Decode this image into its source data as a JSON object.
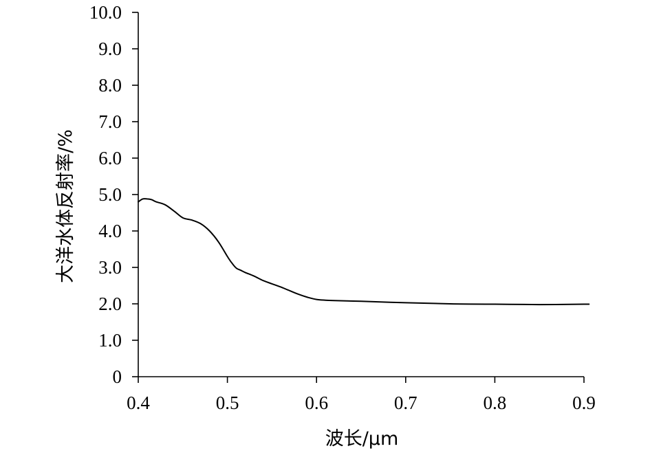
{
  "chart_data": {
    "type": "line",
    "xlabel": "波长/μm",
    "ylabel": "大洋水体反射率/%",
    "xlim": [
      0.4,
      0.9
    ],
    "ylim": [
      0,
      10
    ],
    "x_ticks": [
      "0.4",
      "0.5",
      "0.6",
      "0.7",
      "0.8",
      "0.9"
    ],
    "y_ticks": [
      "0",
      "1.0",
      "2.0",
      "3.0",
      "4.0",
      "5.0",
      "6.0",
      "7.0",
      "8.0",
      "9.0",
      "10.0"
    ],
    "grid": false,
    "legend": "none",
    "series": [
      {
        "x": [
          0.4,
          0.405,
          0.41,
          0.415,
          0.42,
          0.43,
          0.44,
          0.45,
          0.46,
          0.47,
          0.48,
          0.49,
          0.5,
          0.505,
          0.51,
          0.515,
          0.52,
          0.53,
          0.54,
          0.55,
          0.56,
          0.57,
          0.58,
          0.59,
          0.6,
          0.61,
          0.62,
          0.65,
          0.7,
          0.75,
          0.8,
          0.85,
          0.9,
          0.905
        ],
        "y": [
          4.8,
          4.88,
          4.88,
          4.86,
          4.8,
          4.72,
          4.55,
          4.36,
          4.3,
          4.2,
          4.0,
          3.7,
          3.3,
          3.12,
          2.98,
          2.92,
          2.86,
          2.76,
          2.64,
          2.55,
          2.46,
          2.36,
          2.26,
          2.18,
          2.12,
          2.1,
          2.09,
          2.07,
          2.03,
          2.0,
          1.99,
          1.98,
          1.99,
          1.99
        ]
      }
    ]
  }
}
